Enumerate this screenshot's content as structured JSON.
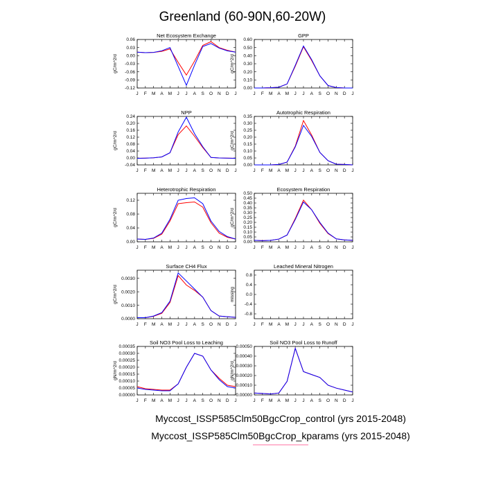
{
  "figure": {
    "title": "Greenland (60-90N,60-20W)",
    "legend": [
      {
        "label": "Myccost_ISSP585Clm50BgcCrop_control (yrs 2015-2048)",
        "color": "#ff0000"
      },
      {
        "label": "Myccost_ISSP585Clm50BgcCrop_kparams (yrs 2015-2048)",
        "color": "#0000ff"
      }
    ],
    "accent": "#ff6fa0"
  },
  "chart_data": [
    {
      "type": "line",
      "title": "Net Ecosystem Exchange",
      "ylabel": "gC/m^2/d",
      "categories": [
        "J",
        "F",
        "M",
        "A",
        "M",
        "J",
        "J",
        "A",
        "S",
        "O",
        "N",
        "D",
        "J"
      ],
      "ylim": [
        -0.12,
        0.06
      ],
      "yticks": [
        -0.12,
        -0.09,
        -0.06,
        -0.03,
        0.0,
        0.03,
        0.06
      ],
      "ytick_labels": [
        "-0.12",
        "-0.09",
        "-0.06",
        "-0.03",
        "0.00",
        "0.03",
        "0.06"
      ],
      "series": [
        {
          "color": "#ff0000",
          "values": [
            0.013,
            0.011,
            0.012,
            0.016,
            0.025,
            -0.025,
            -0.072,
            -0.02,
            0.038,
            0.052,
            0.03,
            0.02,
            0.013
          ]
        },
        {
          "color": "#0000ff",
          "values": [
            0.013,
            0.011,
            0.012,
            0.018,
            0.03,
            -0.04,
            -0.11,
            -0.035,
            0.034,
            0.045,
            0.028,
            0.018,
            0.013
          ]
        }
      ]
    },
    {
      "type": "line",
      "title": "GPP",
      "ylabel": "gC/m^2/d",
      "categories": [
        "J",
        "F",
        "M",
        "A",
        "M",
        "J",
        "J",
        "A",
        "S",
        "O",
        "N",
        "D",
        "J"
      ],
      "ylim": [
        0,
        0.6
      ],
      "yticks": [
        0,
        0.1,
        0.2,
        0.3,
        0.4,
        0.5,
        0.6
      ],
      "ytick_labels": [
        "0.00",
        "0.10",
        "0.20",
        "0.30",
        "0.40",
        "0.50",
        "0.60"
      ],
      "series": [
        {
          "color": "#ff0000",
          "values": [
            0.0,
            0.0,
            0.003,
            0.01,
            0.05,
            0.27,
            0.51,
            0.34,
            0.15,
            0.03,
            0.005,
            0.0,
            0.0
          ]
        },
        {
          "color": "#0000ff",
          "values": [
            0.0,
            0.0,
            0.003,
            0.01,
            0.05,
            0.28,
            0.52,
            0.35,
            0.15,
            0.03,
            0.005,
            0.0,
            0.0
          ]
        }
      ]
    },
    {
      "type": "line",
      "title": "NPP",
      "ylabel": "gC/m^2/d",
      "categories": [
        "J",
        "F",
        "M",
        "A",
        "M",
        "J",
        "J",
        "A",
        "S",
        "O",
        "N",
        "D",
        "J"
      ],
      "ylim": [
        -0.04,
        0.24
      ],
      "yticks": [
        -0.04,
        0.0,
        0.04,
        0.08,
        0.12,
        0.16,
        0.2,
        0.24
      ],
      "ytick_labels": [
        "-0.04",
        "0.00",
        "0.04",
        "0.08",
        "0.12",
        "0.16",
        "0.20",
        "0.24"
      ],
      "series": [
        {
          "color": "#ff0000",
          "values": [
            -0.002,
            -0.001,
            0.001,
            0.006,
            0.03,
            0.135,
            0.185,
            0.125,
            0.06,
            0.003,
            0.0,
            -0.001,
            -0.002
          ]
        },
        {
          "color": "#0000ff",
          "values": [
            -0.002,
            -0.001,
            0.001,
            0.006,
            0.03,
            0.15,
            0.235,
            0.14,
            0.065,
            0.003,
            0.0,
            -0.001,
            -0.002
          ]
        }
      ]
    },
    {
      "type": "line",
      "title": "Autotrophic Respiration",
      "ylabel": "gC/m^2/d",
      "categories": [
        "J",
        "F",
        "M",
        "A",
        "M",
        "J",
        "J",
        "A",
        "S",
        "O",
        "N",
        "D",
        "J"
      ],
      "ylim": [
        0,
        0.35
      ],
      "yticks": [
        0,
        0.05,
        0.1,
        0.15,
        0.2,
        0.25,
        0.3,
        0.35
      ],
      "ytick_labels": [
        "0.00",
        "0.05",
        "0.10",
        "0.15",
        "0.20",
        "0.25",
        "0.30",
        "0.35"
      ],
      "series": [
        {
          "color": "#ff0000",
          "values": [
            0.0,
            0.0,
            0.0,
            0.003,
            0.02,
            0.135,
            0.32,
            0.215,
            0.09,
            0.03,
            0.005,
            0.003,
            0.0
          ]
        },
        {
          "color": "#0000ff",
          "values": [
            0.0,
            0.0,
            0.0,
            0.003,
            0.02,
            0.13,
            0.285,
            0.205,
            0.09,
            0.03,
            0.005,
            0.003,
            0.0
          ]
        }
      ]
    },
    {
      "type": "line",
      "title": "Heterotrophic Respiration",
      "ylabel": "gC/m^2/d",
      "categories": [
        "J",
        "F",
        "M",
        "A",
        "M",
        "J",
        "J",
        "A",
        "S",
        "O",
        "N",
        "D",
        "J"
      ],
      "ylim": [
        0,
        0.14
      ],
      "yticks": [
        0,
        0.04,
        0.08,
        0.12
      ],
      "ytick_labels": [
        "0.00",
        "0.04",
        "0.08",
        "0.12"
      ],
      "series": [
        {
          "color": "#ff0000",
          "values": [
            0.008,
            0.007,
            0.01,
            0.022,
            0.06,
            0.11,
            0.113,
            0.115,
            0.1,
            0.055,
            0.025,
            0.013,
            0.008
          ]
        },
        {
          "color": "#0000ff",
          "values": [
            0.008,
            0.007,
            0.011,
            0.025,
            0.065,
            0.12,
            0.125,
            0.127,
            0.11,
            0.06,
            0.03,
            0.015,
            0.008
          ]
        }
      ]
    },
    {
      "type": "line",
      "title": "Ecosystem Respiration",
      "ylabel": "gC/m^2/d",
      "categories": [
        "J",
        "F",
        "M",
        "A",
        "M",
        "J",
        "J",
        "A",
        "S",
        "O",
        "N",
        "D",
        "J"
      ],
      "ylim": [
        0,
        0.5
      ],
      "yticks": [
        0,
        0.05,
        0.1,
        0.15,
        0.2,
        0.25,
        0.3,
        0.35,
        0.4,
        0.45,
        0.5
      ],
      "ytick_labels": [
        "0.00",
        "0.05",
        "0.10",
        "0.15",
        "0.20",
        "0.25",
        "0.30",
        "0.35",
        "0.40",
        "0.45",
        "0.50"
      ],
      "series": [
        {
          "color": "#ff0000",
          "values": [
            0.015,
            0.012,
            0.015,
            0.028,
            0.07,
            0.24,
            0.43,
            0.33,
            0.19,
            0.085,
            0.03,
            0.02,
            0.015
          ]
        },
        {
          "color": "#0000ff",
          "values": [
            0.015,
            0.012,
            0.015,
            0.028,
            0.07,
            0.23,
            0.41,
            0.33,
            0.2,
            0.09,
            0.03,
            0.02,
            0.015
          ]
        }
      ]
    },
    {
      "type": "line",
      "title": "Surface CH4 Flux",
      "ylabel": "gC/m^2/d",
      "categories": [
        "J",
        "F",
        "M",
        "A",
        "M",
        "J",
        "J",
        "A",
        "S",
        "O",
        "N",
        "D",
        "J"
      ],
      "ylim": [
        0,
        0.0036
      ],
      "yticks": [
        0,
        0.001,
        0.002,
        0.003
      ],
      "ytick_labels": [
        "0.0000",
        "0.0010",
        "0.0020",
        "0.0030"
      ],
      "series": [
        {
          "color": "#ff0000",
          "values": [
            8e-05,
            8e-05,
            0.00018,
            0.0004,
            0.0012,
            0.0032,
            0.0025,
            0.0021,
            0.0016,
            0.0006,
            0.0002,
            0.00015,
            0.0001
          ]
        },
        {
          "color": "#0000ff",
          "values": [
            8e-05,
            8e-05,
            0.0002,
            0.00045,
            0.0013,
            0.0034,
            0.0028,
            0.0022,
            0.0016,
            0.0006,
            0.0002,
            0.00015,
            0.0001
          ]
        }
      ]
    },
    {
      "type": "line",
      "title": "Leached Mineral Nitrogen",
      "ylabel": "missing",
      "categories": [
        "J",
        "F",
        "M",
        "A",
        "M",
        "J",
        "J",
        "A",
        "S",
        "O",
        "N",
        "D",
        "J"
      ],
      "ylim": [
        -1,
        1
      ],
      "yticks": [
        -0.8,
        -0.4,
        0.0,
        0.4,
        0.8
      ],
      "ytick_labels": [
        "-0.8",
        "-0.4",
        "0.0",
        "0.4",
        "0.8"
      ],
      "series": []
    },
    {
      "type": "line",
      "title": "Soil NO3 Pool Loss to Leaching",
      "ylabel": "gN/m^2/d",
      "categories": [
        "J",
        "F",
        "M",
        "A",
        "M",
        "J",
        "J",
        "A",
        "S",
        "O",
        "N",
        "D",
        "J"
      ],
      "ylim": [
        0,
        0.00035
      ],
      "yticks": [
        0,
        5e-05,
        0.0001,
        0.00015,
        0.0002,
        0.00025,
        0.0003,
        0.00035
      ],
      "ytick_labels": [
        "0.00000",
        "0.00005",
        "0.00010",
        "0.00015",
        "0.00020",
        "0.00025",
        "0.00030",
        "0.00035"
      ],
      "series": [
        {
          "color": "#ff0000",
          "values": [
            6e-05,
            4.5e-05,
            4e-05,
            3.5e-05,
            3.5e-05,
            8e-05,
            0.0002,
            0.0003,
            0.00028,
            0.00018,
            0.00012,
            7e-05,
            6e-05
          ]
        },
        {
          "color": "#0000ff",
          "values": [
            5e-05,
            4e-05,
            3.5e-05,
            3e-05,
            3e-05,
            8e-05,
            0.0002,
            0.0003,
            0.00028,
            0.00018,
            0.00011,
            6e-05,
            5e-05
          ]
        }
      ]
    },
    {
      "type": "line",
      "title": "Soil NO3 Pool Loss to Runoff",
      "ylabel": "gN/m^2/d",
      "categories": [
        "J",
        "F",
        "M",
        "A",
        "M",
        "J",
        "J",
        "A",
        "S",
        "O",
        "N",
        "D",
        "J"
      ],
      "ylim": [
        0,
        0.0005
      ],
      "yticks": [
        0,
        0.0001,
        0.0002,
        0.0003,
        0.0004,
        0.0005
      ],
      "ytick_labels": [
        "0.00000",
        "0.00010",
        "0.00020",
        "0.00030",
        "0.00040",
        "0.00050"
      ],
      "series": [
        {
          "color": "#ff0000",
          "values": [
            2e-05,
            1.5e-05,
            1e-05,
            2e-05,
            0.00014,
            0.00048,
            0.00024,
            0.00021,
            0.00018,
            0.0001,
            7e-05,
            5e-05,
            3e-05
          ]
        },
        {
          "color": "#0000ff",
          "values": [
            2e-05,
            1.5e-05,
            1e-05,
            2e-05,
            0.00014,
            0.00048,
            0.00024,
            0.00021,
            0.00018,
            0.0001,
            7e-05,
            5e-05,
            3e-05
          ]
        }
      ]
    }
  ]
}
